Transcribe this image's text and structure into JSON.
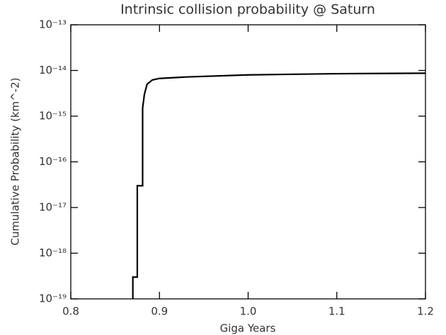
{
  "chart_data": {
    "type": "line",
    "title": "Intrinsic collision probability @ Saturn",
    "x_label": "Giga Years",
    "y_label": "Cumulative Probability (km^-2)",
    "log_y": true,
    "xlim": [
      0.8,
      1.2
    ],
    "xticks": [
      0.8,
      0.9,
      {
        "value": 1,
        "label": "1.0"
      },
      1.1,
      1.2
    ],
    "ylim": [
      1e-19,
      1e-13
    ],
    "yticks": [
      {
        "value": 1e-19,
        "label": "10⁻¹⁹"
      },
      {
        "value": 1e-18,
        "label": "10⁻¹⁸"
      },
      {
        "value": 1e-17,
        "label": "10⁻¹⁷"
      },
      {
        "value": 1e-16,
        "label": "10⁻¹⁶"
      },
      {
        "value": 1e-15,
        "label": "10⁻¹⁵"
      },
      {
        "value": 1e-14,
        "label": "10⁻¹⁴"
      },
      {
        "value": 1e-13,
        "label": "10⁻¹³"
      }
    ],
    "grid": false,
    "series": [
      {
        "color": "#000000",
        "x": [
          0.87,
          0.87,
          0.875,
          0.875,
          0.881,
          0.881,
          0.883,
          0.886,
          0.892,
          0.9,
          0.93,
          1.0,
          1.1,
          1.2
        ],
        "values": [
          1e-19,
          3e-19,
          3e-19,
          3e-17,
          3e-17,
          1.5e-15,
          3e-15,
          5e-15,
          6.2e-15,
          6.7e-15,
          7.2e-15,
          8e-15,
          8.5e-15,
          8.7e-15
        ]
      }
    ]
  }
}
